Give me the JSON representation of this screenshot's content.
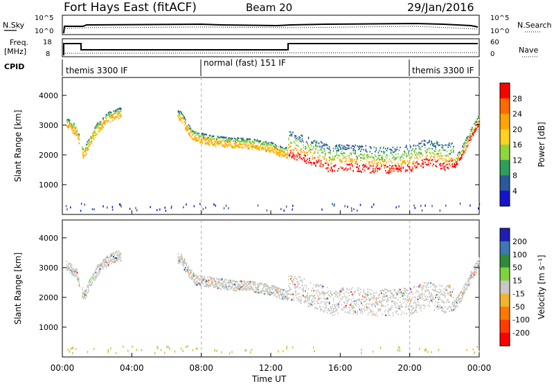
{
  "header": {
    "station": "Fort Hays East (fitACF)",
    "beam": "Beam 20",
    "date": "29/Jan/2016"
  },
  "top_panels": {
    "nsky_label": "N.Sky",
    "nsearch_label": "N.Search",
    "freq_label_1": "Freq.",
    "freq_label_2": "[MHz]",
    "nave_label": "Nave",
    "cpid_label": "CPID",
    "noise_ticks": [
      "10^5",
      "10^0"
    ],
    "freq_ticks": [
      "18",
      "8"
    ],
    "nave_ticks": [
      "60",
      "0"
    ],
    "cpid_segments": [
      {
        "label": "themis 3300 IF",
        "start_h": 0,
        "end_h": 8
      },
      {
        "label": "normal (fast) 151 IF",
        "start_h": 8,
        "end_h": 20
      },
      {
        "label": "themis 3300 IF",
        "start_h": 20,
        "end_h": 24
      }
    ]
  },
  "chart_data": [
    {
      "type": "heatmap",
      "name": "Power",
      "ylabel": "Slant Range [km]",
      "colorbar_label": "Power [dB]",
      "colorbar_ticks": [
        "28",
        "24",
        "20",
        "16",
        "12",
        "8",
        "4"
      ],
      "colorbar_colors": [
        "#ff0000",
        "#ff6a00",
        "#ffa500",
        "#ffd21e",
        "#8fd63c",
        "#2f9e5a",
        "#2a5a9a",
        "#1414cc"
      ],
      "ylim": [
        0,
        4600
      ],
      "yticks": [
        1000,
        2000,
        3000,
        4000
      ],
      "xlim": [
        0,
        24
      ],
      "xticks": [
        "00:00",
        "04:00",
        "08:00",
        "12:00",
        "16:00",
        "20:00",
        "00:00"
      ]
    },
    {
      "type": "heatmap",
      "name": "Velocity",
      "ylabel": "Slant Range [km]",
      "colorbar_label": "Velocity [m s⁻¹]",
      "colorbar_ticks": [
        "200",
        "100",
        "50",
        "15",
        "-15",
        "-50",
        "-100",
        "-200"
      ],
      "colorbar_colors": [
        "#1e1eb4",
        "#3c78b4",
        "#2e8b3a",
        "#7ed23c",
        "#c8c8c4",
        "#f0b432",
        "#ff7800",
        "#ff3c00",
        "#ff0000"
      ],
      "ylim": [
        0,
        4600
      ],
      "yticks": [
        1000,
        2000,
        3000,
        4000
      ],
      "xlim": [
        0,
        24
      ],
      "xticks": [
        "00:00",
        "04:00",
        "08:00",
        "12:00",
        "16:00",
        "20:00",
        "00:00"
      ],
      "xlabel": "Time UT"
    }
  ],
  "scatter_band": {
    "description_points_h_km": [
      [
        0.2,
        3000
      ],
      [
        0.8,
        2700
      ],
      [
        1.2,
        1900
      ],
      [
        1.6,
        2400
      ],
      [
        2.0,
        2800
      ],
      [
        2.6,
        3150
      ],
      [
        3.2,
        3300
      ],
      [
        6.8,
        3200
      ],
      [
        7.2,
        2800
      ],
      [
        7.6,
        2500
      ],
      [
        8.0,
        2450
      ],
      [
        9.0,
        2350
      ],
      [
        10.0,
        2300
      ],
      [
        11.0,
        2250
      ],
      [
        12.0,
        2150
      ],
      [
        12.6,
        2000
      ],
      [
        13.2,
        1950
      ],
      [
        14.0,
        1800
      ],
      [
        15.0,
        1600
      ],
      [
        15.5,
        1450
      ],
      [
        16.0,
        1550
      ],
      [
        17.0,
        1500
      ],
      [
        18.0,
        1450
      ],
      [
        19.0,
        1450
      ],
      [
        20.0,
        1500
      ],
      [
        21.0,
        1700
      ],
      [
        22.0,
        1550
      ],
      [
        22.6,
        1650
      ],
      [
        23.0,
        2000
      ],
      [
        23.5,
        2600
      ],
      [
        24.0,
        3100
      ]
    ]
  }
}
